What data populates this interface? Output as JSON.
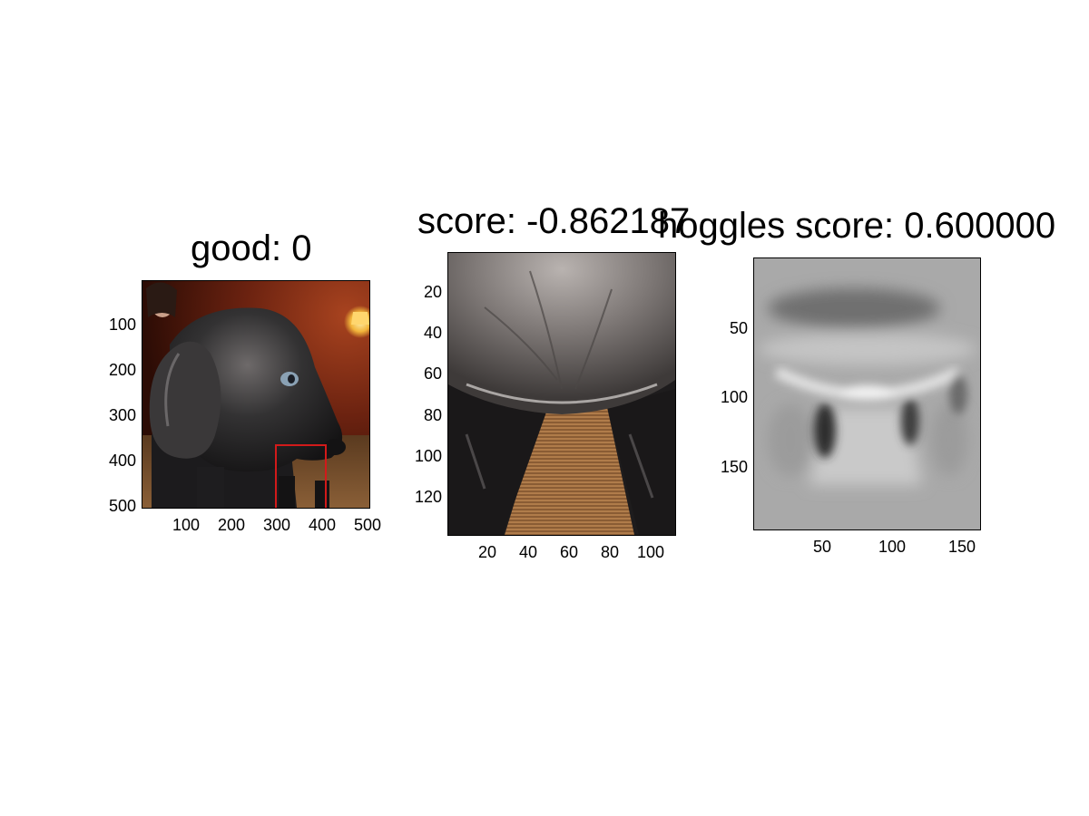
{
  "panels": [
    {
      "title": "good: 0",
      "xticks": [
        "100",
        "200",
        "300",
        "400",
        "500"
      ],
      "yticks": [
        "100",
        "200",
        "300",
        "400",
        "500"
      ],
      "image_subject": "black-labrador-puppy-photo"
    },
    {
      "title": "score: -0.862187",
      "xticks": [
        "20",
        "40",
        "60",
        "80",
        "100"
      ],
      "yticks": [
        "20",
        "40",
        "60",
        "80",
        "100",
        "120"
      ],
      "image_subject": "cropped-puppy-chin-and-carpet"
    },
    {
      "title": "hoggles score: 0.600000",
      "xticks": [
        "50",
        "100",
        "150"
      ],
      "yticks": [
        "50",
        "100",
        "150"
      ],
      "image_subject": "grayscale-hoggles-reconstruction"
    }
  ],
  "colors": {
    "bbox": "#d21a1a",
    "fur": "#2a2a2c",
    "carpet": "#9a6a3e",
    "wall": "#6b2210",
    "lamp": "#f2b43a"
  }
}
